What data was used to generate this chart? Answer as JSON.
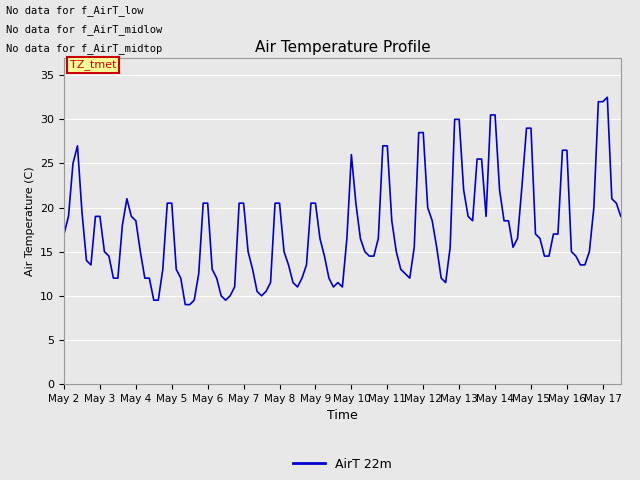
{
  "title": "Air Temperature Profile",
  "xlabel": "Time",
  "ylabel": "Air Temperature (C)",
  "legend_label": "AirT 22m",
  "annotations": [
    "No data for f_AirT_low",
    "No data for f_AirT_midlow",
    "No data for f_AirT_midtop"
  ],
  "tz_label": "TZ_tmet",
  "line_color": "#0000cc",
  "ylim": [
    0,
    37
  ],
  "yticks": [
    0,
    5,
    10,
    15,
    20,
    25,
    30,
    35
  ],
  "x_dates": [
    "May 2",
    "May 3",
    "May 4",
    "May 5",
    "May 6",
    "May 7",
    "May 8",
    "May 9",
    "May 10",
    "May 11",
    "May 12",
    "May 13",
    "May 14",
    "May 15",
    "May 16",
    "May 17"
  ],
  "time_values": [
    0.0,
    0.125,
    0.25,
    0.375,
    0.5,
    0.625,
    0.75,
    0.875,
    1.0,
    1.125,
    1.25,
    1.375,
    1.5,
    1.625,
    1.75,
    1.875,
    2.0,
    2.125,
    2.25,
    2.375,
    2.5,
    2.625,
    2.75,
    2.875,
    3.0,
    3.125,
    3.25,
    3.375,
    3.5,
    3.625,
    3.75,
    3.875,
    4.0,
    4.125,
    4.25,
    4.375,
    4.5,
    4.625,
    4.75,
    4.875,
    5.0,
    5.125,
    5.25,
    5.375,
    5.5,
    5.625,
    5.75,
    5.875,
    6.0,
    6.125,
    6.25,
    6.375,
    6.5,
    6.625,
    6.75,
    6.875,
    7.0,
    7.125,
    7.25,
    7.375,
    7.5,
    7.625,
    7.75,
    7.875,
    8.0,
    8.125,
    8.25,
    8.375,
    8.5,
    8.625,
    8.75,
    8.875,
    9.0,
    9.125,
    9.25,
    9.375,
    9.5,
    9.625,
    9.75,
    9.875,
    10.0,
    10.125,
    10.25,
    10.375,
    10.5,
    10.625,
    10.75,
    10.875,
    11.0,
    11.125,
    11.25,
    11.375,
    11.5,
    11.625,
    11.75,
    11.875,
    12.0,
    12.125,
    12.25,
    12.375,
    12.5,
    12.625,
    12.75,
    12.875,
    13.0,
    13.125,
    13.25,
    13.375,
    13.5,
    13.625,
    13.75,
    13.875,
    14.0,
    14.125,
    14.25,
    14.375,
    14.5,
    14.625,
    14.75,
    14.875,
    15.0,
    15.125,
    15.25,
    15.375,
    15.5
  ],
  "temp_values": [
    17.0,
    19.0,
    25.0,
    27.0,
    19.5,
    14.0,
    13.5,
    19.0,
    19.0,
    15.0,
    14.5,
    12.0,
    12.0,
    18.0,
    21.0,
    19.0,
    18.5,
    15.0,
    12.0,
    12.0,
    9.5,
    9.5,
    13.0,
    20.5,
    20.5,
    13.0,
    12.0,
    9.0,
    9.0,
    9.5,
    12.5,
    20.5,
    20.5,
    13.0,
    12.0,
    10.0,
    9.5,
    10.0,
    11.0,
    20.5,
    20.5,
    15.0,
    13.0,
    10.5,
    10.0,
    10.5,
    11.5,
    20.5,
    20.5,
    15.0,
    13.5,
    11.5,
    11.0,
    12.0,
    13.5,
    20.5,
    20.5,
    16.5,
    14.5,
    12.0,
    11.0,
    11.5,
    11.0,
    16.5,
    26.0,
    20.5,
    16.5,
    15.0,
    14.5,
    14.5,
    16.5,
    27.0,
    27.0,
    18.5,
    15.0,
    13.0,
    12.5,
    12.0,
    15.5,
    28.5,
    28.5,
    20.0,
    18.5,
    15.5,
    12.0,
    11.5,
    15.5,
    30.0,
    30.0,
    22.0,
    19.0,
    18.5,
    25.5,
    25.5,
    19.0,
    30.5,
    30.5,
    22.0,
    18.5,
    18.5,
    15.5,
    16.5,
    22.5,
    29.0,
    29.0,
    17.0,
    16.5,
    14.5,
    14.5,
    17.0,
    17.0,
    26.5,
    26.5,
    15.0,
    14.5,
    13.5,
    13.5,
    15.0,
    20.0,
    32.0,
    32.0,
    32.5,
    21.0,
    20.5,
    19.0
  ]
}
